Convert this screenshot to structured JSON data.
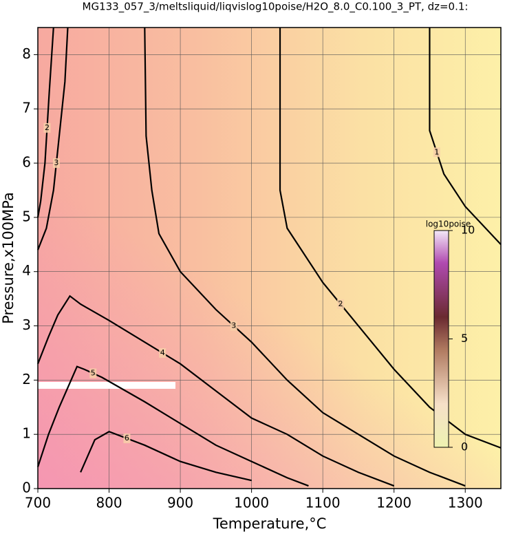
{
  "chart_data": {
    "type": "contour",
    "title": "MG133_057_3/meltsliquid/liqvislog10poise/H2O_8.0_C0.100_3_PT, dz=0.1:",
    "x_label": "Temperature,°C",
    "y_label": "Pressure,x100MPa",
    "xlim": [
      700,
      1350
    ],
    "ylim": [
      0,
      8.5
    ],
    "xticks": [
      700,
      800,
      900,
      1000,
      1100,
      1200,
      1300
    ],
    "yticks": [
      0,
      1,
      2,
      3,
      4,
      5,
      6,
      7,
      8
    ],
    "grid": true,
    "colorbar": {
      "label": "log10poise",
      "lim": [
        0,
        10
      ],
      "ticks": [
        0,
        5,
        10
      ]
    },
    "contours": [
      {
        "level": 1,
        "x": [
          1250,
          1250,
          1270,
          1300,
          1350
        ],
        "y": [
          8.5,
          6.6,
          5.8,
          5.2,
          4.5
        ]
      },
      {
        "level": 2,
        "x": [
          1040,
          1040,
          1050,
          1100,
          1150,
          1200,
          1250,
          1300,
          1350
        ],
        "y": [
          8.5,
          5.5,
          4.8,
          3.8,
          3.0,
          2.2,
          1.5,
          1.0,
          0.75
        ]
      },
      {
        "level": 2,
        "x": [
          722,
          716,
          710,
          704,
          700
        ],
        "y": [
          8.5,
          7.3,
          6.0,
          5.3,
          5.0
        ]
      },
      {
        "level": 3,
        "x": [
          850,
          852,
          860,
          870,
          900,
          950,
          1000,
          1050,
          1100,
          1150,
          1200,
          1250,
          1300
        ],
        "y": [
          8.5,
          6.5,
          5.5,
          4.7,
          4.0,
          3.3,
          2.7,
          2.0,
          1.4,
          1.0,
          0.6,
          0.3,
          0.05
        ]
      },
      {
        "level": 3,
        "x": [
          742,
          738,
          730,
          722,
          712,
          700
        ],
        "y": [
          8.5,
          7.5,
          6.5,
          5.5,
          4.8,
          4.4
        ]
      },
      {
        "level": 4,
        "x": [
          700,
          715,
          728,
          745,
          760,
          800,
          850,
          900,
          950,
          1000,
          1050,
          1100,
          1150,
          1200
        ],
        "y": [
          2.3,
          2.8,
          3.2,
          3.55,
          3.4,
          3.1,
          2.7,
          2.3,
          1.8,
          1.3,
          1.0,
          0.6,
          0.3,
          0.05
        ]
      },
      {
        "level": 5,
        "x": [
          700,
          705,
          715,
          730,
          755,
          765,
          790,
          850,
          900,
          950,
          1000,
          1050,
          1080
        ],
        "y": [
          0.4,
          0.6,
          1.0,
          1.5,
          2.25,
          2.2,
          2.05,
          1.6,
          1.2,
          0.8,
          0.5,
          0.2,
          0.05
        ]
      },
      {
        "level": 6,
        "x": [
          760,
          770,
          780,
          800,
          850,
          900,
          950,
          1000
        ],
        "y": [
          0.3,
          0.6,
          0.9,
          1.05,
          0.8,
          0.5,
          0.3,
          0.15
        ]
      }
    ]
  }
}
